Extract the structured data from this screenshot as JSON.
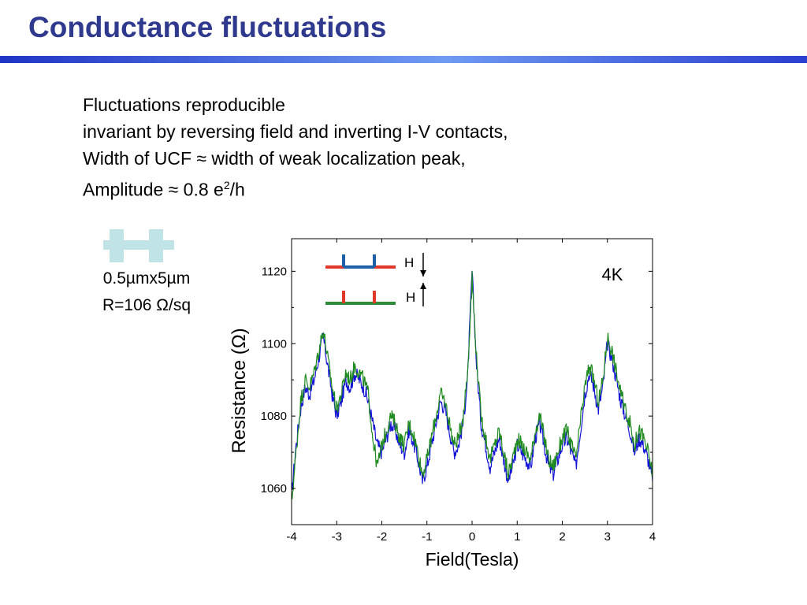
{
  "slide": {
    "title": "Conductance fluctuations",
    "bullets": [
      {
        "text": "Fluctuations reproducible"
      },
      {
        "text": "invariant by reversing field and inverting I-V contacts,"
      },
      {
        "text": "Width of UCF ≈ width of weak localization peak,"
      },
      {
        "text": "Amplitude ≈ 0.8 e",
        "sup": "2",
        "tail": "/h"
      }
    ],
    "sample": {
      "size_label": "0.5µmx5µm",
      "sheet_resistance_label": "R=106 Ω/sq",
      "icon": "hall-bar-icon",
      "icon_color": "#bfe3e6"
    }
  },
  "chart_data": {
    "type": "line",
    "title": "",
    "xlabel": "Field(Tesla)",
    "ylabel": "Resistance (Ω)",
    "xlim": [
      -4,
      4
    ],
    "ylim": [
      1050,
      1129
    ],
    "xticks": [
      -4,
      -3,
      -2,
      -1,
      0,
      1,
      2,
      3,
      4
    ],
    "yticks": [
      1060,
      1080,
      1100,
      1120
    ],
    "grid": false,
    "annotation": "4K",
    "legend": {
      "placement": "top-left",
      "entries": [
        {
          "label": "H",
          "arrow": "down",
          "line_color": "#e0392b",
          "contact_color": "#1f5fa8"
        },
        {
          "label": "H",
          "arrow": "up",
          "line_color": "#2e8b3a",
          "contact_color": "#e0392b"
        }
      ]
    },
    "series": [
      {
        "color": "#1515d8",
        "x": [
          -4.0,
          -3.9,
          -3.8,
          -3.7,
          -3.6,
          -3.5,
          -3.4,
          -3.3,
          -3.2,
          -3.1,
          -3.0,
          -2.9,
          -2.8,
          -2.7,
          -2.6,
          -2.5,
          -2.4,
          -2.3,
          -2.2,
          -2.1,
          -2.0,
          -1.9,
          -1.8,
          -1.7,
          -1.6,
          -1.5,
          -1.4,
          -1.3,
          -1.2,
          -1.1,
          -1.0,
          -0.9,
          -0.8,
          -0.7,
          -0.6,
          -0.5,
          -0.4,
          -0.3,
          -0.2,
          -0.1,
          0.0,
          0.1,
          0.2,
          0.3,
          0.4,
          0.5,
          0.6,
          0.7,
          0.8,
          0.9,
          1.0,
          1.1,
          1.2,
          1.3,
          1.4,
          1.5,
          1.6,
          1.7,
          1.8,
          1.9,
          2.0,
          2.1,
          2.2,
          2.3,
          2.4,
          2.5,
          2.6,
          2.7,
          2.8,
          2.9,
          3.0,
          3.1,
          3.2,
          3.3,
          3.4,
          3.5,
          3.6,
          3.7,
          3.8,
          3.9,
          4.0
        ],
        "values": [
          1058,
          1072,
          1082,
          1088,
          1086,
          1090,
          1096,
          1102,
          1094,
          1086,
          1080,
          1084,
          1090,
          1088,
          1092,
          1090,
          1088,
          1084,
          1078,
          1072,
          1070,
          1074,
          1078,
          1076,
          1072,
          1070,
          1076,
          1073,
          1068,
          1062,
          1066,
          1072,
          1078,
          1084,
          1082,
          1076,
          1070,
          1072,
          1078,
          1090,
          1120,
          1094,
          1078,
          1072,
          1066,
          1070,
          1074,
          1068,
          1062,
          1066,
          1072,
          1070,
          1068,
          1066,
          1074,
          1078,
          1072,
          1066,
          1064,
          1068,
          1072,
          1074,
          1070,
          1066,
          1076,
          1086,
          1092,
          1088,
          1082,
          1088,
          1100,
          1096,
          1090,
          1084,
          1080,
          1076,
          1070,
          1074,
          1072,
          1068,
          1062
        ]
      },
      {
        "color": "#1f8a1f",
        "x": [
          -4.0,
          -3.9,
          -3.8,
          -3.7,
          -3.6,
          -3.5,
          -3.4,
          -3.3,
          -3.2,
          -3.1,
          -3.0,
          -2.9,
          -2.8,
          -2.7,
          -2.6,
          -2.5,
          -2.4,
          -2.3,
          -2.2,
          -2.1,
          -2.0,
          -1.9,
          -1.8,
          -1.7,
          -1.6,
          -1.5,
          -1.4,
          -1.3,
          -1.2,
          -1.1,
          -1.0,
          -0.9,
          -0.8,
          -0.7,
          -0.6,
          -0.5,
          -0.4,
          -0.3,
          -0.2,
          -0.1,
          0.0,
          0.1,
          0.2,
          0.3,
          0.4,
          0.5,
          0.6,
          0.7,
          0.8,
          0.9,
          1.0,
          1.1,
          1.2,
          1.3,
          1.4,
          1.5,
          1.6,
          1.7,
          1.8,
          1.9,
          2.0,
          2.1,
          2.2,
          2.3,
          2.4,
          2.5,
          2.6,
          2.7,
          2.8,
          2.9,
          3.0,
          3.1,
          3.2,
          3.3,
          3.4,
          3.5,
          3.6,
          3.7,
          3.8,
          3.9,
          4.0
        ],
        "values": [
          1056,
          1070,
          1084,
          1090,
          1088,
          1092,
          1098,
          1104,
          1096,
          1088,
          1082,
          1086,
          1092,
          1090,
          1094,
          1092,
          1090,
          1086,
          1074,
          1066,
          1072,
          1076,
          1080,
          1078,
          1074,
          1072,
          1078,
          1075,
          1070,
          1064,
          1068,
          1074,
          1080,
          1086,
          1084,
          1078,
          1072,
          1074,
          1080,
          1092,
          1118,
          1096,
          1080,
          1074,
          1068,
          1072,
          1076,
          1070,
          1064,
          1068,
          1074,
          1072,
          1070,
          1068,
          1076,
          1080,
          1074,
          1068,
          1066,
          1070,
          1074,
          1076,
          1072,
          1068,
          1078,
          1088,
          1094,
          1090,
          1084,
          1090,
          1102,
          1098,
          1092,
          1086,
          1082,
          1078,
          1072,
          1076,
          1074,
          1070,
          1064
        ]
      }
    ]
  }
}
